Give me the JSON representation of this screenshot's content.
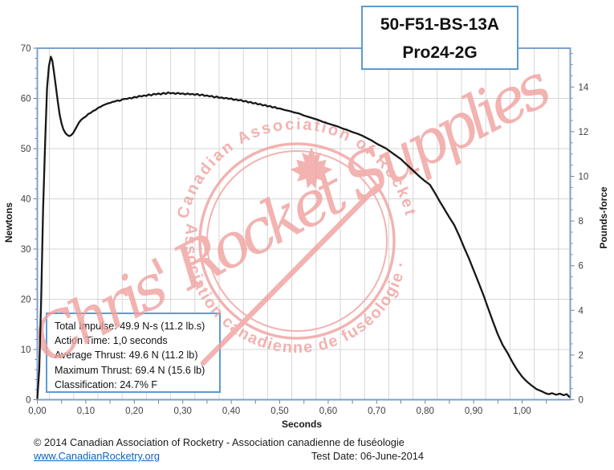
{
  "title_box": {
    "line1": "50-F51-BS-13A",
    "line2": "Pro24-2G"
  },
  "info_box": {
    "lines": [
      "Total Impulse: 49.9 N-s (11.2 lb.s)",
      "Action Time: 1,0 seconds",
      "Average Thrust: 49.6 N (11.2 lb)",
      "Maximum Thrust: 69.4 N (15.6 lb)",
      "Classification: 24.7% F"
    ]
  },
  "watermark": {
    "script_text": "Chris' Rocket Supplies",
    "arc_text_top": "· Canadian Association of Rocketry",
    "arc_text_bottom": "Association canadienne de fuséologie ·",
    "color": "#f0a19e",
    "maple_leaf": "maple-leaf-icon"
  },
  "footer": {
    "copyright": "© 2014 Canadian Association of Rocketry - Association canadienne de fuséologie",
    "link": "www.CanadianRocketry.org",
    "test_date": "Test  Date: 06-June-2014"
  },
  "chart_data": {
    "type": "line",
    "title": "",
    "xlabel": "Seconds",
    "ylabel_left": "Newtons",
    "ylabel_right": "Pounds-force",
    "xlim": [
      0,
      1.099
    ],
    "ylim_newtons": [
      0,
      70
    ],
    "ylim_pounds_force": [
      0,
      15.73
    ],
    "newtons_per_pound": 4.44822,
    "grid": "major gridlines: vertical every 0.05 s, horizontal every 10 N",
    "legend": "none",
    "x_tick_labels": [
      "0,00",
      "0,10",
      "0,20",
      "0,30",
      "0,40",
      "0,50",
      "0,60",
      "0,70",
      "0,80",
      "0,90",
      "1,00"
    ],
    "x_tick_values": [
      0,
      0.1,
      0.2,
      0.3,
      0.4,
      0.5,
      0.6,
      0.7,
      0.8,
      0.9,
      1.0
    ],
    "x_minor_step": 0.05,
    "y_left_tick_values": [
      0,
      10,
      20,
      30,
      40,
      50,
      60,
      70
    ],
    "y_left_minor_step": 2,
    "y_right_tick_values": [
      0,
      2,
      4,
      6,
      8,
      10,
      12,
      14
    ],
    "y_right_minor_step": 0.5,
    "frame_color": "#7ba0cd",
    "grid_color": "#d6d6d6",
    "tick_color": "#7f7f7f",
    "label_color": "#3f3f3f",
    "curve_color": "#181818",
    "series": [
      {
        "name": "thrust_newtons_vs_seconds",
        "points": [
          [
            0.0,
            0.3
          ],
          [
            0.004,
            6.0
          ],
          [
            0.008,
            20.0
          ],
          [
            0.012,
            38.0
          ],
          [
            0.016,
            51.0
          ],
          [
            0.02,
            62.0
          ],
          [
            0.024,
            66.5
          ],
          [
            0.028,
            68.3
          ],
          [
            0.031,
            67.5
          ],
          [
            0.034,
            65.5
          ],
          [
            0.038,
            62.5
          ],
          [
            0.042,
            59.5
          ],
          [
            0.046,
            56.8
          ],
          [
            0.05,
            55.0
          ],
          [
            0.054,
            53.8
          ],
          [
            0.058,
            53.1
          ],
          [
            0.062,
            52.7
          ],
          [
            0.066,
            52.5
          ],
          [
            0.07,
            52.7
          ],
          [
            0.074,
            53.1
          ],
          [
            0.078,
            53.8
          ],
          [
            0.082,
            54.5
          ],
          [
            0.086,
            55.2
          ],
          [
            0.09,
            55.7
          ],
          [
            0.095,
            56.1
          ],
          [
            0.1,
            56.4
          ],
          [
            0.105,
            56.9
          ],
          [
            0.11,
            57.1
          ],
          [
            0.115,
            57.5
          ],
          [
            0.12,
            57.7
          ],
          [
            0.125,
            58.1
          ],
          [
            0.13,
            58.3
          ],
          [
            0.135,
            58.6
          ],
          [
            0.14,
            58.8
          ],
          [
            0.145,
            59.0
          ],
          [
            0.15,
            59.1
          ],
          [
            0.155,
            59.3
          ],
          [
            0.16,
            59.4
          ],
          [
            0.165,
            59.6
          ],
          [
            0.17,
            59.5
          ],
          [
            0.175,
            59.8
          ],
          [
            0.18,
            59.9
          ],
          [
            0.185,
            59.9
          ],
          [
            0.19,
            60.1
          ],
          [
            0.195,
            60.0
          ],
          [
            0.2,
            60.3
          ],
          [
            0.205,
            60.2
          ],
          [
            0.21,
            60.5
          ],
          [
            0.215,
            60.4
          ],
          [
            0.22,
            60.6
          ],
          [
            0.225,
            60.5
          ],
          [
            0.23,
            60.8
          ],
          [
            0.235,
            60.6
          ],
          [
            0.24,
            60.9
          ],
          [
            0.245,
            60.8
          ],
          [
            0.25,
            61.0
          ],
          [
            0.255,
            60.8
          ],
          [
            0.26,
            61.1
          ],
          [
            0.265,
            60.9
          ],
          [
            0.27,
            61.2
          ],
          [
            0.275,
            61.0
          ],
          [
            0.28,
            61.1
          ],
          [
            0.285,
            60.9
          ],
          [
            0.29,
            61.1
          ],
          [
            0.295,
            60.9
          ],
          [
            0.3,
            61.0
          ],
          [
            0.305,
            60.8
          ],
          [
            0.31,
            61.0
          ],
          [
            0.315,
            60.8
          ],
          [
            0.32,
            60.9
          ],
          [
            0.325,
            60.7
          ],
          [
            0.33,
            60.9
          ],
          [
            0.335,
            60.6
          ],
          [
            0.34,
            60.8
          ],
          [
            0.345,
            60.5
          ],
          [
            0.35,
            60.6
          ],
          [
            0.355,
            60.4
          ],
          [
            0.36,
            60.5
          ],
          [
            0.365,
            60.2
          ],
          [
            0.37,
            60.4
          ],
          [
            0.375,
            60.1
          ],
          [
            0.38,
            60.2
          ],
          [
            0.385,
            60.0
          ],
          [
            0.39,
            60.1
          ],
          [
            0.395,
            59.9
          ],
          [
            0.4,
            60.0
          ],
          [
            0.405,
            59.7
          ],
          [
            0.41,
            59.8
          ],
          [
            0.415,
            59.6
          ],
          [
            0.42,
            59.7
          ],
          [
            0.425,
            59.4
          ],
          [
            0.43,
            59.5
          ],
          [
            0.435,
            59.2
          ],
          [
            0.44,
            59.3
          ],
          [
            0.445,
            59.0
          ],
          [
            0.45,
            59.1
          ],
          [
            0.455,
            58.8
          ],
          [
            0.46,
            58.9
          ],
          [
            0.465,
            58.6
          ],
          [
            0.47,
            58.7
          ],
          [
            0.475,
            58.4
          ],
          [
            0.48,
            58.5
          ],
          [
            0.485,
            58.2
          ],
          [
            0.49,
            58.3
          ],
          [
            0.495,
            58.0
          ],
          [
            0.5,
            58.0
          ],
          [
            0.51,
            57.7
          ],
          [
            0.52,
            57.5
          ],
          [
            0.53,
            57.2
          ],
          [
            0.54,
            57.0
          ],
          [
            0.55,
            56.6
          ],
          [
            0.56,
            56.3
          ],
          [
            0.57,
            56.0
          ],
          [
            0.58,
            55.7
          ],
          [
            0.59,
            55.3
          ],
          [
            0.6,
            55.0
          ],
          [
            0.61,
            54.7
          ],
          [
            0.62,
            54.4
          ],
          [
            0.63,
            54.0
          ],
          [
            0.64,
            53.7
          ],
          [
            0.65,
            53.3
          ],
          [
            0.66,
            53.0
          ],
          [
            0.67,
            52.6
          ],
          [
            0.68,
            52.1
          ],
          [
            0.69,
            51.6
          ],
          [
            0.7,
            51.0
          ],
          [
            0.71,
            50.5
          ],
          [
            0.72,
            50.0
          ],
          [
            0.73,
            49.3
          ],
          [
            0.74,
            48.6
          ],
          [
            0.75,
            47.9
          ],
          [
            0.76,
            47.0
          ],
          [
            0.77,
            46.1
          ],
          [
            0.78,
            45.2
          ],
          [
            0.79,
            44.3
          ],
          [
            0.8,
            43.5
          ],
          [
            0.81,
            42.8
          ],
          [
            0.82,
            41.2
          ],
          [
            0.83,
            39.5
          ],
          [
            0.84,
            37.9
          ],
          [
            0.85,
            36.3
          ],
          [
            0.86,
            34.8
          ],
          [
            0.87,
            32.7
          ],
          [
            0.88,
            30.4
          ],
          [
            0.89,
            28.2
          ],
          [
            0.9,
            25.8
          ],
          [
            0.91,
            23.4
          ],
          [
            0.92,
            20.9
          ],
          [
            0.93,
            18.2
          ],
          [
            0.94,
            15.5
          ],
          [
            0.95,
            13.0
          ],
          [
            0.96,
            10.9
          ],
          [
            0.97,
            9.3
          ],
          [
            0.98,
            7.5
          ],
          [
            0.99,
            5.9
          ],
          [
            1.0,
            4.6
          ],
          [
            1.01,
            3.6
          ],
          [
            1.02,
            2.8
          ],
          [
            1.03,
            2.1
          ],
          [
            1.04,
            1.7
          ],
          [
            1.048,
            1.3
          ],
          [
            1.055,
            1.1
          ],
          [
            1.062,
            1.3
          ],
          [
            1.07,
            1.0
          ],
          [
            1.078,
            1.2
          ],
          [
            1.086,
            0.9
          ],
          [
            1.092,
            1.1
          ],
          [
            1.097,
            0.6
          ]
        ]
      }
    ]
  }
}
